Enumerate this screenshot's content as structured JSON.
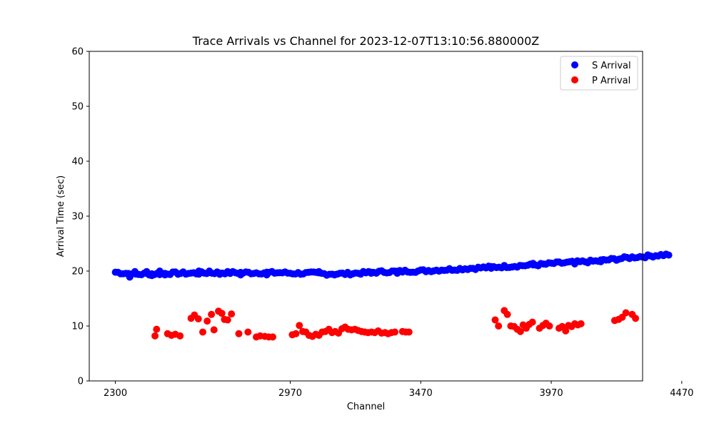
{
  "chart_data": {
    "type": "scatter",
    "title": "Trace Arrivals vs Channel for 2023-12-07T13:10:56.880000Z",
    "xlabel": "Channel",
    "ylabel": "Arrival Time (sec)",
    "xlim": [
      2200,
      4320
    ],
    "ylim": [
      0,
      60
    ],
    "xticks": [
      2300,
      2970,
      3470,
      3970,
      4470
    ],
    "yticks": [
      0,
      10,
      20,
      30,
      40,
      50,
      60
    ],
    "grid": false,
    "legend_position": "top-right",
    "series": [
      {
        "name": "S Arrival",
        "color": "#0000ff",
        "trend": [
          [
            2300,
            19.8
          ],
          [
            2340,
            19.6
          ],
          [
            2380,
            19.4
          ],
          [
            2420,
            19.5
          ],
          [
            2460,
            19.5
          ],
          [
            2500,
            19.6
          ],
          [
            2540,
            19.6
          ],
          [
            2580,
            19.6
          ],
          [
            2620,
            19.6
          ],
          [
            2660,
            19.7
          ],
          [
            2700,
            19.7
          ],
          [
            2740,
            19.7
          ],
          [
            2780,
            19.7
          ],
          [
            2820,
            19.7
          ],
          [
            2860,
            19.7
          ],
          [
            2900,
            19.7
          ],
          [
            2940,
            19.7
          ],
          [
            2980,
            19.6
          ],
          [
            3020,
            19.6
          ],
          [
            3060,
            19.6
          ],
          [
            3100,
            19.5
          ],
          [
            3140,
            19.5
          ],
          [
            3180,
            19.5
          ],
          [
            3220,
            19.6
          ],
          [
            3260,
            19.7
          ],
          [
            3300,
            19.8
          ],
          [
            3340,
            19.9
          ],
          [
            3380,
            19.9
          ],
          [
            3420,
            20.0
          ],
          [
            3460,
            20.0
          ],
          [
            3500,
            20.1
          ],
          [
            3540,
            20.2
          ],
          [
            3580,
            20.3
          ],
          [
            3620,
            20.4
          ],
          [
            3660,
            20.5
          ],
          [
            3700,
            20.6
          ],
          [
            3740,
            20.7
          ],
          [
            3780,
            20.8
          ],
          [
            3820,
            20.9
          ],
          [
            3860,
            21.0
          ],
          [
            3900,
            21.1
          ],
          [
            3940,
            21.2
          ],
          [
            3980,
            21.4
          ],
          [
            4020,
            21.5
          ],
          [
            4060,
            21.6
          ],
          [
            4100,
            21.7
          ],
          [
            4140,
            21.8
          ],
          [
            4180,
            22.0
          ],
          [
            4220,
            22.2
          ],
          [
            4260,
            22.4
          ],
          [
            4300,
            22.6
          ],
          [
            4340,
            22.7
          ],
          [
            4380,
            22.9
          ],
          [
            4420,
            23.0
          ]
        ],
        "outliers": [
          [
            2355,
            18.9
          ],
          [
            2375,
            19.9
          ],
          [
            2420,
            19.9
          ],
          [
            2440,
            19.2
          ],
          [
            2470,
            20.0
          ],
          [
            2490,
            19.3
          ],
          [
            2620,
            20.0
          ],
          [
            2660,
            20.0
          ],
          [
            2700,
            19.4
          ],
          [
            2780,
            19.3
          ],
          [
            2880,
            19.3
          ],
          [
            3080,
            19.9
          ],
          [
            3140,
            19.3
          ],
          [
            3280,
            19.6
          ],
          [
            3380,
            19.6
          ],
          [
            3740,
            20.5
          ],
          [
            3900,
            21.4
          ],
          [
            4060,
            21.3
          ],
          [
            4160,
            21.7
          ]
        ]
      },
      {
        "name": "P Arrival",
        "color": "#ff0000",
        "values": [
          [
            2452,
            8.2
          ],
          [
            2458,
            9.4
          ],
          [
            2500,
            8.6
          ],
          [
            2515,
            8.3
          ],
          [
            2530,
            8.5
          ],
          [
            2548,
            8.2
          ],
          [
            2590,
            11.4
          ],
          [
            2603,
            12.0
          ],
          [
            2618,
            11.3
          ],
          [
            2635,
            8.9
          ],
          [
            2652,
            10.9
          ],
          [
            2668,
            12.1
          ],
          [
            2678,
            9.3
          ],
          [
            2695,
            12.7
          ],
          [
            2708,
            12.3
          ],
          [
            2718,
            11.2
          ],
          [
            2730,
            11.1
          ],
          [
            2745,
            12.2
          ],
          [
            2773,
            8.6
          ],
          [
            2808,
            8.9
          ],
          [
            2840,
            8.0
          ],
          [
            2855,
            8.2
          ],
          [
            2873,
            8.1
          ],
          [
            2888,
            8.0
          ],
          [
            2903,
            8.0
          ],
          [
            2978,
            8.4
          ],
          [
            2992,
            8.6
          ],
          [
            3005,
            10.1
          ],
          [
            3018,
            9.0
          ],
          [
            3030,
            8.9
          ],
          [
            3042,
            8.3
          ],
          [
            3055,
            8.1
          ],
          [
            3068,
            8.5
          ],
          [
            3080,
            8.3
          ],
          [
            3092,
            8.9
          ],
          [
            3105,
            9.0
          ],
          [
            3118,
            9.4
          ],
          [
            3130,
            8.8
          ],
          [
            3142,
            9.0
          ],
          [
            3155,
            8.7
          ],
          [
            3168,
            9.5
          ],
          [
            3180,
            9.8
          ],
          [
            3192,
            9.4
          ],
          [
            3205,
            9.3
          ],
          [
            3218,
            9.4
          ],
          [
            3230,
            9.2
          ],
          [
            3243,
            9.0
          ],
          [
            3256,
            8.9
          ],
          [
            3268,
            8.8
          ],
          [
            3281,
            8.9
          ],
          [
            3294,
            8.8
          ],
          [
            3307,
            9.1
          ],
          [
            3320,
            8.7
          ],
          [
            3333,
            8.8
          ],
          [
            3345,
            8.6
          ],
          [
            3358,
            8.8
          ],
          [
            3371,
            8.9
          ],
          [
            3400,
            9.0
          ],
          [
            3413,
            8.9
          ],
          [
            3425,
            8.9
          ],
          [
            3755,
            11.1
          ],
          [
            3768,
            10.0
          ],
          [
            3790,
            12.8
          ],
          [
            3802,
            12.1
          ],
          [
            3815,
            10.0
          ],
          [
            3828,
            9.9
          ],
          [
            3840,
            9.4
          ],
          [
            3852,
            9.0
          ],
          [
            3862,
            10.2
          ],
          [
            3874,
            9.6
          ],
          [
            3886,
            10.3
          ],
          [
            3898,
            10.7
          ],
          [
            3925,
            9.6
          ],
          [
            3938,
            10.1
          ],
          [
            3950,
            10.5
          ],
          [
            3963,
            10.0
          ],
          [
            4000,
            9.6
          ],
          [
            4012,
            9.9
          ],
          [
            4025,
            9.1
          ],
          [
            4036,
            10.1
          ],
          [
            4048,
            9.9
          ],
          [
            4060,
            10.4
          ],
          [
            4072,
            10.2
          ],
          [
            4084,
            10.4
          ],
          [
            4213,
            11.0
          ],
          [
            4228,
            11.2
          ],
          [
            4242,
            11.6
          ],
          [
            4256,
            12.4
          ],
          [
            4280,
            12.1
          ],
          [
            4293,
            11.4
          ]
        ]
      }
    ]
  }
}
